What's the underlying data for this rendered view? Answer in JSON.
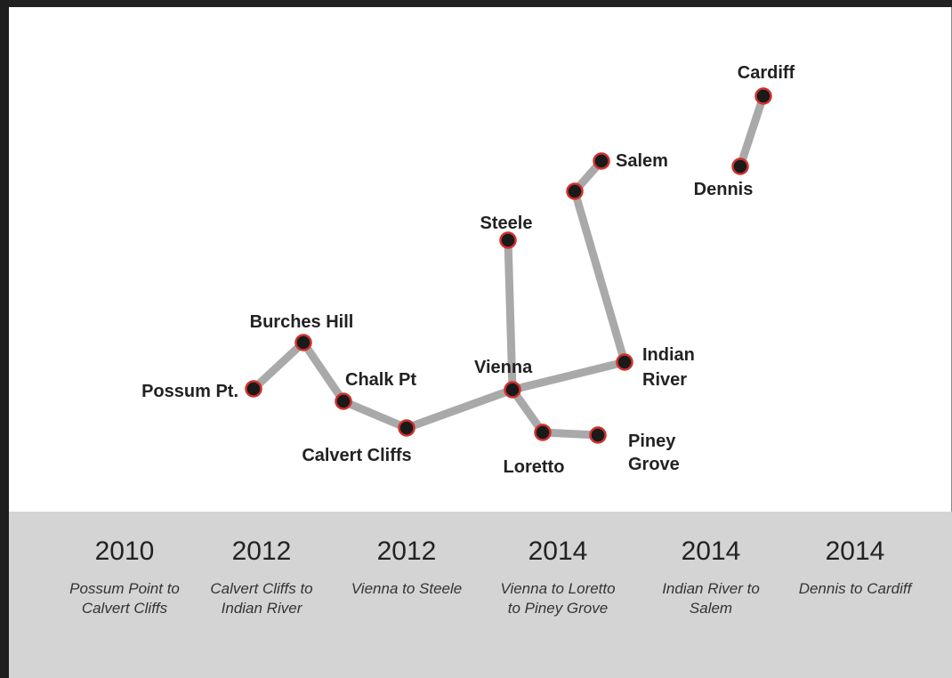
{
  "stations": {
    "possum": "Possum Pt.",
    "burches": "Burches Hill",
    "chalk": "Chalk Pt",
    "calvert": "Calvert Cliffs",
    "vienna": "Vienna",
    "steele": "Steele",
    "loretto": "Loretto",
    "piney_1": "Piney",
    "piney_2": "Grove",
    "indian_1": "Indian",
    "indian_2": "River",
    "salem": "Salem",
    "dennis": "Dennis",
    "cardiff": "Cardiff"
  },
  "timeline": [
    {
      "year": "2010",
      "desc": "Possum Point to\nCalvert Cliffs"
    },
    {
      "year": "2012",
      "desc": "Calvert Cliffs to\nIndian River"
    },
    {
      "year": "2012",
      "desc": "Vienna to Steele"
    },
    {
      "year": "2014",
      "desc": "Vienna to Loretto\nto Piney Grove"
    },
    {
      "year": "2014",
      "desc": "Indian River to\nSalem"
    },
    {
      "year": "2014",
      "desc": "Dennis to Cardiff"
    }
  ],
  "colors": {
    "line": "#a9a9a9",
    "node_fill": "#1a1a1a",
    "node_ring": "#d0312d",
    "timeline_bg": "#d4d4d4"
  }
}
